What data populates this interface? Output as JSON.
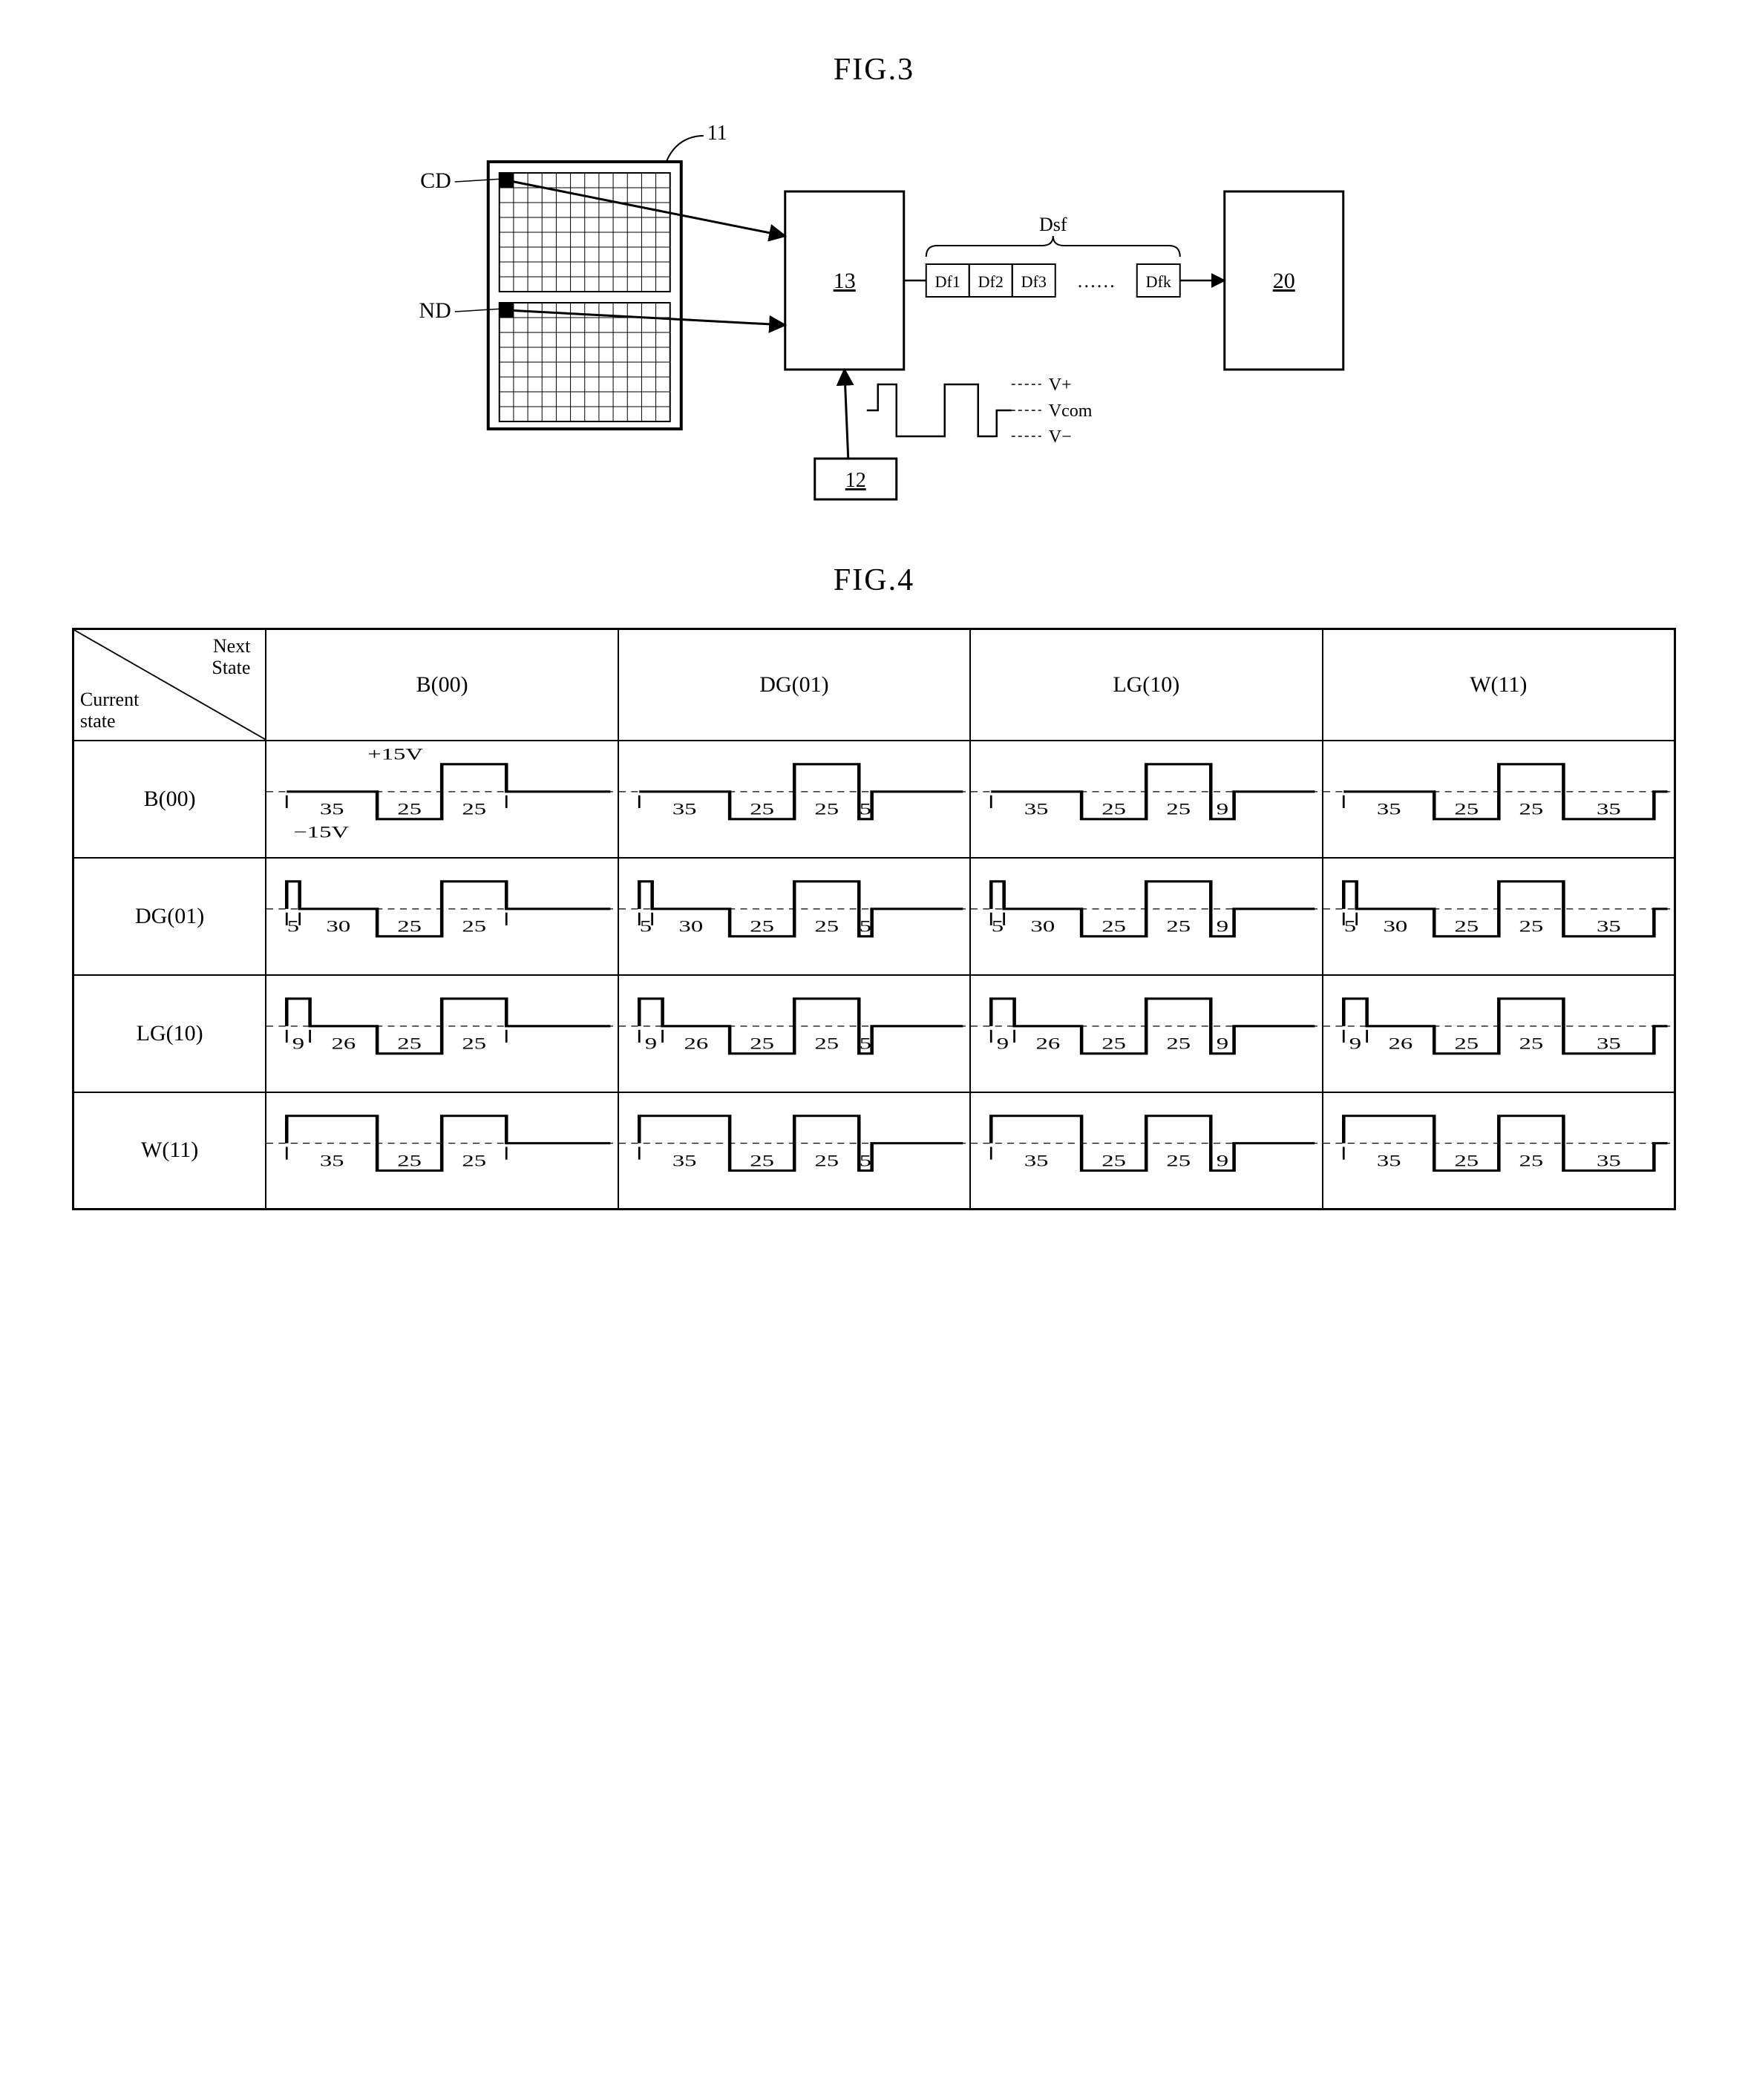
{
  "fig3": {
    "title": "FIG.3",
    "memory_label_top": "CD",
    "memory_label_bottom": "ND",
    "memory_leader": "11",
    "block_a": "13",
    "block_b": "12",
    "block_c": "20",
    "data_bus_label": "Dsf",
    "data_bus_items": [
      "Df1",
      "Df2",
      "Df3",
      "……",
      "Dfk"
    ],
    "voltage_labels": [
      "V+",
      "Vcom",
      "V−"
    ],
    "grid_rows": 8,
    "grid_cols": 12,
    "colors": {
      "stroke": "#000000",
      "bg": "#ffffff"
    }
  },
  "fig4": {
    "title": "FIG.4",
    "header_diag": {
      "top": "Next\nState",
      "bottom": "Current\nstate"
    },
    "col_headers": [
      "B(00)",
      "DG(01)",
      "LG(10)",
      "W(11)"
    ],
    "row_headers": [
      "B(00)",
      "DG(01)",
      "LG(10)",
      "W(11)"
    ],
    "voltage_annotation": {
      "plus": "+15V",
      "minus": "−15V"
    },
    "annotation_cell": [
      0,
      0
    ],
    "waveforms": {
      "comment": "each cell: list of segments {w: width-units, lvl: -1|0|1, label: optional-below}",
      "y_levels": {
        "1": 20,
        "0": 50,
        "-1": 80
      },
      "baseline_dashed": true,
      "rows": [
        [
          [
            {
              "w": 35,
              "lvl": 0,
              "label": "35"
            },
            {
              "w": 25,
              "lvl": -1,
              "label": "25"
            },
            {
              "w": 25,
              "lvl": 1,
              "label": "25"
            },
            {
              "w": 35,
              "lvl": 0
            }
          ],
          [
            {
              "w": 35,
              "lvl": 0,
              "label": "35"
            },
            {
              "w": 25,
              "lvl": -1,
              "label": "25"
            },
            {
              "w": 25,
              "lvl": 1,
              "label": "25"
            },
            {
              "w": 5,
              "lvl": -1,
              "label": "5"
            },
            {
              "w": 30,
              "lvl": 0
            }
          ],
          [
            {
              "w": 35,
              "lvl": 0,
              "label": "35"
            },
            {
              "w": 25,
              "lvl": -1,
              "label": "25"
            },
            {
              "w": 25,
              "lvl": 1,
              "label": "25"
            },
            {
              "w": 9,
              "lvl": -1,
              "label": "9"
            },
            {
              "w": 26,
              "lvl": 0
            }
          ],
          [
            {
              "w": 35,
              "lvl": 0,
              "label": "35"
            },
            {
              "w": 25,
              "lvl": -1,
              "label": "25"
            },
            {
              "w": 25,
              "lvl": 1,
              "label": "25"
            },
            {
              "w": 35,
              "lvl": -1,
              "label": "35"
            }
          ]
        ],
        [
          [
            {
              "w": 5,
              "lvl": 1,
              "label": "5"
            },
            {
              "w": 30,
              "lvl": 0,
              "label": "30"
            },
            {
              "w": 25,
              "lvl": -1,
              "label": "25"
            },
            {
              "w": 25,
              "lvl": 1,
              "label": "25"
            },
            {
              "w": 35,
              "lvl": 0
            }
          ],
          [
            {
              "w": 5,
              "lvl": 1,
              "label": "5"
            },
            {
              "w": 30,
              "lvl": 0,
              "label": "30"
            },
            {
              "w": 25,
              "lvl": -1,
              "label": "25"
            },
            {
              "w": 25,
              "lvl": 1,
              "label": "25"
            },
            {
              "w": 5,
              "lvl": -1,
              "label": "5"
            },
            {
              "w": 30,
              "lvl": 0
            }
          ],
          [
            {
              "w": 5,
              "lvl": 1,
              "label": "5"
            },
            {
              "w": 30,
              "lvl": 0,
              "label": "30"
            },
            {
              "w": 25,
              "lvl": -1,
              "label": "25"
            },
            {
              "w": 25,
              "lvl": 1,
              "label": "25"
            },
            {
              "w": 9,
              "lvl": -1,
              "label": "9"
            },
            {
              "w": 26,
              "lvl": 0
            }
          ],
          [
            {
              "w": 5,
              "lvl": 1,
              "label": "5"
            },
            {
              "w": 30,
              "lvl": 0,
              "label": "30"
            },
            {
              "w": 25,
              "lvl": -1,
              "label": "25"
            },
            {
              "w": 25,
              "lvl": 1,
              "label": "25"
            },
            {
              "w": 35,
              "lvl": -1,
              "label": "35"
            }
          ]
        ],
        [
          [
            {
              "w": 9,
              "lvl": 1,
              "label": "9"
            },
            {
              "w": 26,
              "lvl": 0,
              "label": "26"
            },
            {
              "w": 25,
              "lvl": -1,
              "label": "25"
            },
            {
              "w": 25,
              "lvl": 1,
              "label": "25"
            },
            {
              "w": 35,
              "lvl": 0
            }
          ],
          [
            {
              "w": 9,
              "lvl": 1,
              "label": "9"
            },
            {
              "w": 26,
              "lvl": 0,
              "label": "26"
            },
            {
              "w": 25,
              "lvl": -1,
              "label": "25"
            },
            {
              "w": 25,
              "lvl": 1,
              "label": "25"
            },
            {
              "w": 5,
              "lvl": -1,
              "label": "5"
            },
            {
              "w": 30,
              "lvl": 0
            }
          ],
          [
            {
              "w": 9,
              "lvl": 1,
              "label": "9"
            },
            {
              "w": 26,
              "lvl": 0,
              "label": "26"
            },
            {
              "w": 25,
              "lvl": -1,
              "label": "25"
            },
            {
              "w": 25,
              "lvl": 1,
              "label": "25"
            },
            {
              "w": 9,
              "lvl": -1,
              "label": "9"
            },
            {
              "w": 26,
              "lvl": 0
            }
          ],
          [
            {
              "w": 9,
              "lvl": 1,
              "label": "9"
            },
            {
              "w": 26,
              "lvl": 0,
              "label": "26"
            },
            {
              "w": 25,
              "lvl": -1,
              "label": "25"
            },
            {
              "w": 25,
              "lvl": 1,
              "label": "25"
            },
            {
              "w": 35,
              "lvl": -1,
              "label": "35"
            }
          ]
        ],
        [
          [
            {
              "w": 35,
              "lvl": 1,
              "label": "35"
            },
            {
              "w": 25,
              "lvl": -1,
              "label": "25"
            },
            {
              "w": 25,
              "lvl": 1,
              "label": "25"
            },
            {
              "w": 35,
              "lvl": 0
            }
          ],
          [
            {
              "w": 35,
              "lvl": 1,
              "label": "35"
            },
            {
              "w": 25,
              "lvl": -1,
              "label": "25"
            },
            {
              "w": 25,
              "lvl": 1,
              "label": "25"
            },
            {
              "w": 5,
              "lvl": -1,
              "label": "5"
            },
            {
              "w": 30,
              "lvl": 0
            }
          ],
          [
            {
              "w": 35,
              "lvl": 1,
              "label": "35"
            },
            {
              "w": 25,
              "lvl": -1,
              "label": "25"
            },
            {
              "w": 25,
              "lvl": 1,
              "label": "25"
            },
            {
              "w": 9,
              "lvl": -1,
              "label": "9"
            },
            {
              "w": 26,
              "lvl": 0
            }
          ],
          [
            {
              "w": 35,
              "lvl": 1,
              "label": "35"
            },
            {
              "w": 25,
              "lvl": -1,
              "label": "25"
            },
            {
              "w": 25,
              "lvl": 1,
              "label": "25"
            },
            {
              "w": 35,
              "lvl": -1,
              "label": "35"
            }
          ]
        ]
      ]
    },
    "colors": {
      "stroke": "#000000",
      "bg": "#ffffff"
    }
  }
}
